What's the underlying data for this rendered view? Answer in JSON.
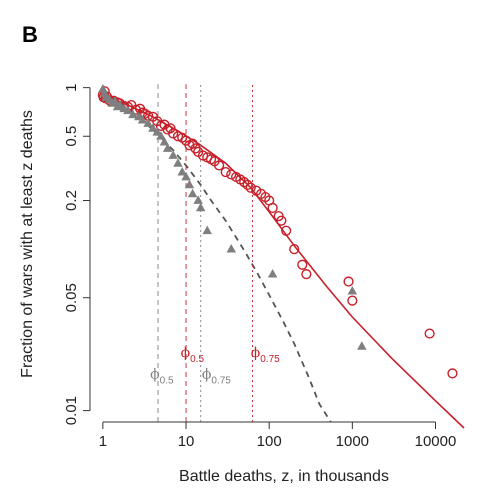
{
  "panel": {
    "letter": "B"
  },
  "chart_data": {
    "type": "scatter",
    "title": "",
    "xlabel": "Battle deaths, z, in thousands",
    "ylabel": "Fraction of wars with at least z deaths",
    "xscale": "log",
    "yscale": "log",
    "xlim": [
      0.7,
      26000
    ],
    "ylim": [
      0.0085,
      1.25
    ],
    "xticks": [
      1,
      10,
      100,
      1000,
      10000
    ],
    "xtick_labels": [
      "1",
      "10",
      "100",
      "1000",
      "10000"
    ],
    "yticks": [
      1,
      0.5,
      0.2,
      0.05,
      0.01
    ],
    "ytick_labels": [
      "1",
      "0.5",
      "0.2",
      "0.05",
      "0.01"
    ],
    "grid": false,
    "colors": {
      "red": "#c8202a",
      "gray": "#7f7f7f",
      "gray_line": "#555555"
    },
    "series": [
      {
        "name": "",
        "marker": "circle-open",
        "color": "#c8202a",
        "x": [
          1.0,
          1.02,
          1.05,
          1.08,
          1.12,
          1.18,
          1.25,
          1.35,
          1.5,
          1.6,
          1.8,
          2.0,
          2.2,
          2.5,
          2.8,
          3.0,
          3.2,
          3.5,
          4.0,
          4.5,
          5.0,
          5.5,
          6.0,
          6.5,
          7.0,
          8.0,
          9.0,
          10.0,
          11.0,
          12.0,
          13.0,
          14.0,
          16.0,
          18.0,
          20.0,
          22.0,
          25.0,
          30.0,
          35.0,
          40.0,
          45.0,
          50.0,
          55.0,
          60.0,
          70.0,
          80.0,
          90.0,
          100.0,
          110.0,
          130.0,
          140.0,
          160.0,
          200.0,
          250.0,
          280.0,
          900.0,
          1000.0,
          8500.0,
          16000.0
        ],
        "y": [
          0.9,
          0.87,
          0.95,
          0.86,
          0.88,
          0.84,
          0.82,
          0.83,
          0.81,
          0.8,
          0.77,
          0.76,
          0.78,
          0.73,
          0.74,
          0.7,
          0.69,
          0.67,
          0.66,
          0.62,
          0.58,
          0.59,
          0.55,
          0.56,
          0.52,
          0.5,
          0.49,
          0.47,
          0.44,
          0.45,
          0.42,
          0.4,
          0.38,
          0.37,
          0.36,
          0.35,
          0.33,
          0.3,
          0.29,
          0.28,
          0.27,
          0.26,
          0.25,
          0.24,
          0.23,
          0.22,
          0.21,
          0.2,
          0.18,
          0.16,
          0.15,
          0.13,
          0.1,
          0.08,
          0.07,
          0.063,
          0.048,
          0.03,
          0.017
        ]
      },
      {
        "name": "",
        "marker": "triangle-filled",
        "color": "#7f7f7f",
        "x": [
          1.0,
          1.05,
          1.1,
          1.2,
          1.3,
          1.4,
          1.5,
          1.6,
          1.8,
          2.0,
          2.3,
          2.7,
          3.0,
          3.5,
          4.0,
          4.5,
          5.0,
          5.5,
          6.0,
          7.0,
          8.0,
          9.0,
          10.0,
          11.0,
          12.0,
          14.0,
          15.0,
          18.0,
          35.0,
          110.0,
          1000.0,
          1300.0
        ],
        "y": [
          0.98,
          0.92,
          0.87,
          0.84,
          0.8,
          0.82,
          0.76,
          0.78,
          0.74,
          0.72,
          0.68,
          0.66,
          0.63,
          0.6,
          0.56,
          0.53,
          0.5,
          0.46,
          0.42,
          0.38,
          0.34,
          0.3,
          0.28,
          0.25,
          0.22,
          0.2,
          0.18,
          0.13,
          0.1,
          0.07,
          0.055,
          0.025
        ]
      }
    ],
    "fits": [
      {
        "name": "",
        "style": "solid",
        "color": "#c8202a",
        "x": [
          1,
          2,
          4,
          8,
          15,
          30,
          60,
          100,
          200,
          500,
          1000,
          3000,
          10000,
          22000
        ],
        "y": [
          0.9,
          0.78,
          0.66,
          0.54,
          0.44,
          0.34,
          0.24,
          0.17,
          0.105,
          0.058,
          0.038,
          0.021,
          0.0115,
          0.0078
        ]
      },
      {
        "name": "",
        "style": "dashed",
        "color": "#555555",
        "x": [
          1,
          2,
          4,
          7,
          10,
          15,
          20,
          30,
          50,
          70,
          100,
          150,
          200,
          300,
          400,
          550
        ],
        "y": [
          0.97,
          0.74,
          0.55,
          0.41,
          0.33,
          0.25,
          0.2,
          0.15,
          0.098,
          0.073,
          0.052,
          0.035,
          0.026,
          0.016,
          0.011,
          0.0085
        ]
      }
    ],
    "vlines": [
      {
        "x": 4.6,
        "color": "#7f7f7f",
        "style": "dashed",
        "label_main": "ϕ",
        "label_sub": "0.5",
        "label_x": 3.7,
        "label_y": 0.0158
      },
      {
        "x": 10.0,
        "color": "#c8202a",
        "style": "dashed",
        "label_main": "ϕ",
        "label_sub": "0.5",
        "label_x": 8.6,
        "label_y": 0.0215
      },
      {
        "x": 15.0,
        "color": "#7f7f7f",
        "style": "dotted",
        "label_main": "ϕ",
        "label_sub": "0.75",
        "label_x": 15.5,
        "label_y": 0.0158
      },
      {
        "x": 63.0,
        "color": "#c8202a",
        "style": "dotted",
        "label_main": "ϕ",
        "label_sub": "0.75",
        "label_x": 60.0,
        "label_y": 0.0215
      }
    ]
  }
}
